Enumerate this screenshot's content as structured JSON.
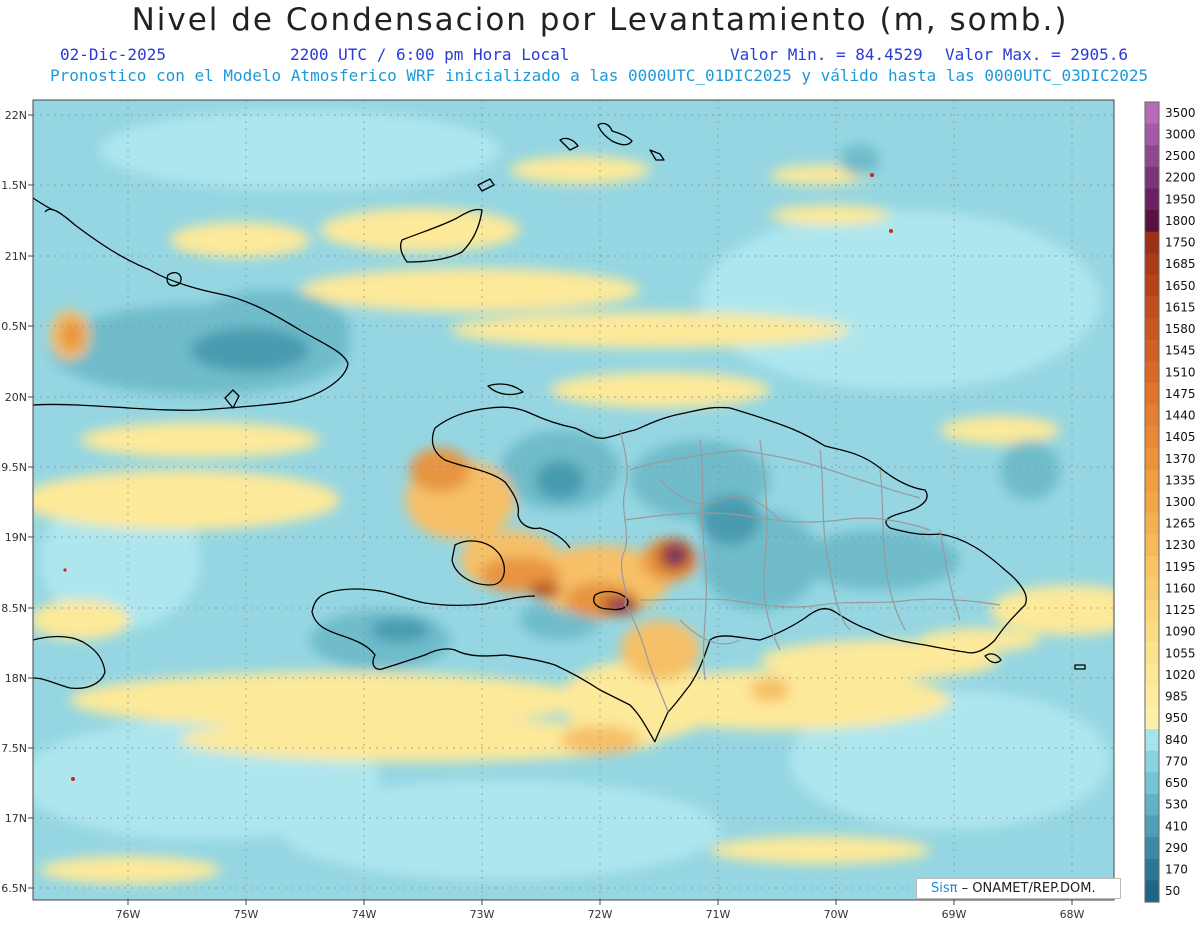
{
  "header": {
    "title": "Nivel de Condensacion por Levantamiento (m, somb.)",
    "date": "02-Dic-2025",
    "time": "2200 UTC / 6:00 pm Hora Local",
    "min": "Valor Min. = 84.4529",
    "max": "Valor Max. = 2905.6",
    "forecast": "Pronostico con el Modelo Atmosferico WRF inicializado a las 0000UTC_01DIC2025 y válido hasta las  0000UTC_03DIC2025"
  },
  "axes": {
    "lat_labels": [
      "22N",
      "1.5N",
      "21N",
      "0.5N",
      "20N",
      "9.5N",
      "19N",
      "8.5N",
      "18N",
      "7.5N",
      "17N",
      "6.5N"
    ],
    "lon_labels": [
      "76W",
      "75W",
      "74W",
      "73W",
      "72W",
      "71W",
      "70W",
      "69W",
      "68W"
    ]
  },
  "colorbar": {
    "labels": [
      "3500",
      "3000",
      "2500",
      "2200",
      "1950",
      "1800",
      "1750",
      "1685",
      "1650",
      "1615",
      "1580",
      "1545",
      "1510",
      "1475",
      "1440",
      "1405",
      "1370",
      "1335",
      "1300",
      "1265",
      "1230",
      "1195",
      "1160",
      "1125",
      "1090",
      "1055",
      "1020",
      "985",
      "950",
      "840",
      "770",
      "650",
      "530",
      "410",
      "290",
      "170",
      "50"
    ],
    "colors": [
      "#b86cb8",
      "#a45aa6",
      "#8e4890",
      "#7a3578",
      "#6a2060",
      "#5a1040",
      "#9a3018",
      "#a83a18",
      "#b44418",
      "#c04e1c",
      "#c85820",
      "#d06024",
      "#d86a28",
      "#e0742c",
      "#e47e30",
      "#e88834",
      "#ec923a",
      "#f09c40",
      "#f2a648",
      "#f4b050",
      "#f6ba5a",
      "#f8c464",
      "#f8cc6e",
      "#fad478",
      "#fadc82",
      "#fce48c",
      "#fce896",
      "#fdeca0",
      "#fef0a8",
      "#a6e4ec",
      "#8ad4e0",
      "#74c4d4",
      "#62b2c6",
      "#509eb6",
      "#3e8aa6",
      "#2e7696",
      "#1f6586"
    ]
  },
  "palette": {
    "sea": "#95d6e2",
    "cyan_light": "#aee6ee",
    "teal": "#6fbccb",
    "teal_dark": "#4a9bb0",
    "yellow": "#fde99a",
    "orange_light": "#f6c068",
    "orange": "#e89440",
    "brown": "#b4551c",
    "purple": "#6a2a6a",
    "coast": "#000000",
    "border": "#9a9a9a"
  },
  "credit": {
    "sis": "Sisπ",
    "org": " – ONAMET/REP.DOM."
  }
}
